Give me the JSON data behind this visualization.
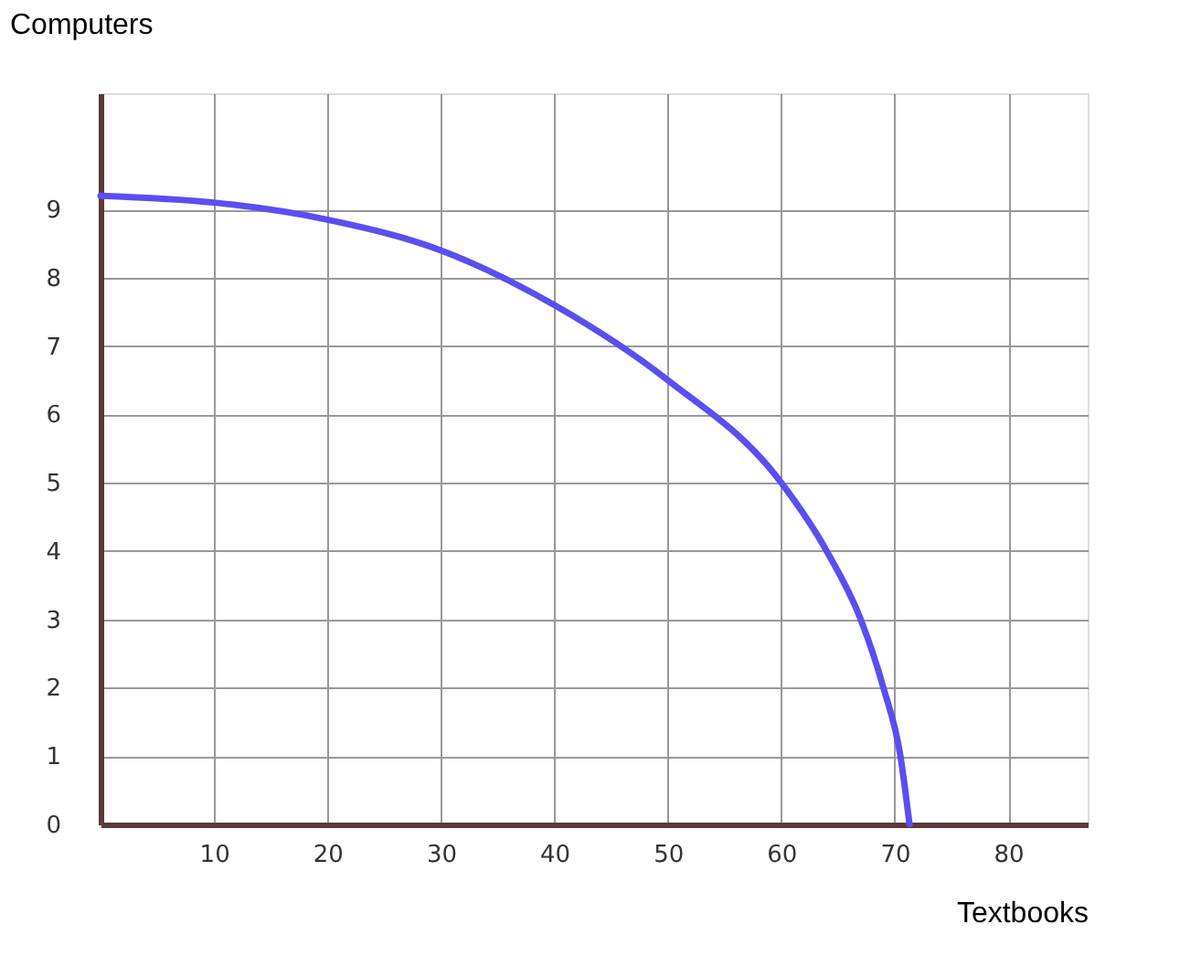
{
  "chart_data": {
    "type": "line",
    "xlabel": "Textbooks",
    "ylabel": "Computers",
    "x": [
      0,
      10,
      20,
      30,
      40,
      50,
      60,
      64,
      67,
      69,
      70.5,
      71.3
    ],
    "series": [
      {
        "color": "#5b4ef0",
        "values": [
          9.2,
          9.1,
          8.85,
          8.4,
          7.6,
          6.5,
          5.0,
          4.0,
          3.0,
          2.0,
          1.0,
          0
        ]
      }
    ],
    "xlim": [
      0,
      87
    ],
    "ylim": [
      0,
      10.7
    ],
    "xticks": [
      10,
      20,
      30,
      40,
      50,
      60,
      70,
      80
    ],
    "yticks": [
      0,
      1,
      2,
      3,
      4,
      5,
      6,
      7,
      8,
      9
    ],
    "grid": true,
    "marker": "none",
    "line_style": "solid",
    "legend": false
  }
}
